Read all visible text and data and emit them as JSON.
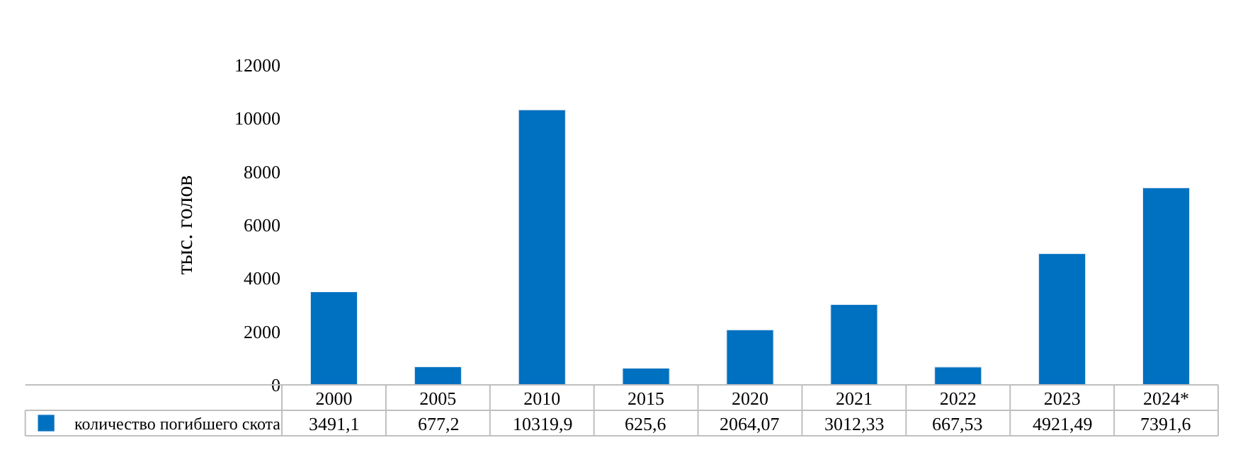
{
  "chart_data": {
    "type": "bar",
    "ylabel": "тыс. голов",
    "categories": [
      "2000",
      "2005",
      "2010",
      "2015",
      "2020",
      "2021",
      "2022",
      "2023",
      "2024*"
    ],
    "series": [
      {
        "name": "количество погибшего скота",
        "color": "#0070c0",
        "values": [
          3491.1,
          677.2,
          10319.9,
          625.6,
          2064.07,
          3012.33,
          667.53,
          4921.49,
          7391.6
        ],
        "value_labels": [
          "3491,1",
          "677,2",
          "10319,9",
          "625,6",
          "2064,07",
          "3012,33",
          "667,53",
          "4921,49",
          "7391,6"
        ]
      }
    ],
    "ylim": [
      0,
      12000
    ],
    "yticks": [
      0,
      2000,
      4000,
      6000,
      8000,
      10000,
      12000
    ],
    "legend": "bottom left"
  }
}
